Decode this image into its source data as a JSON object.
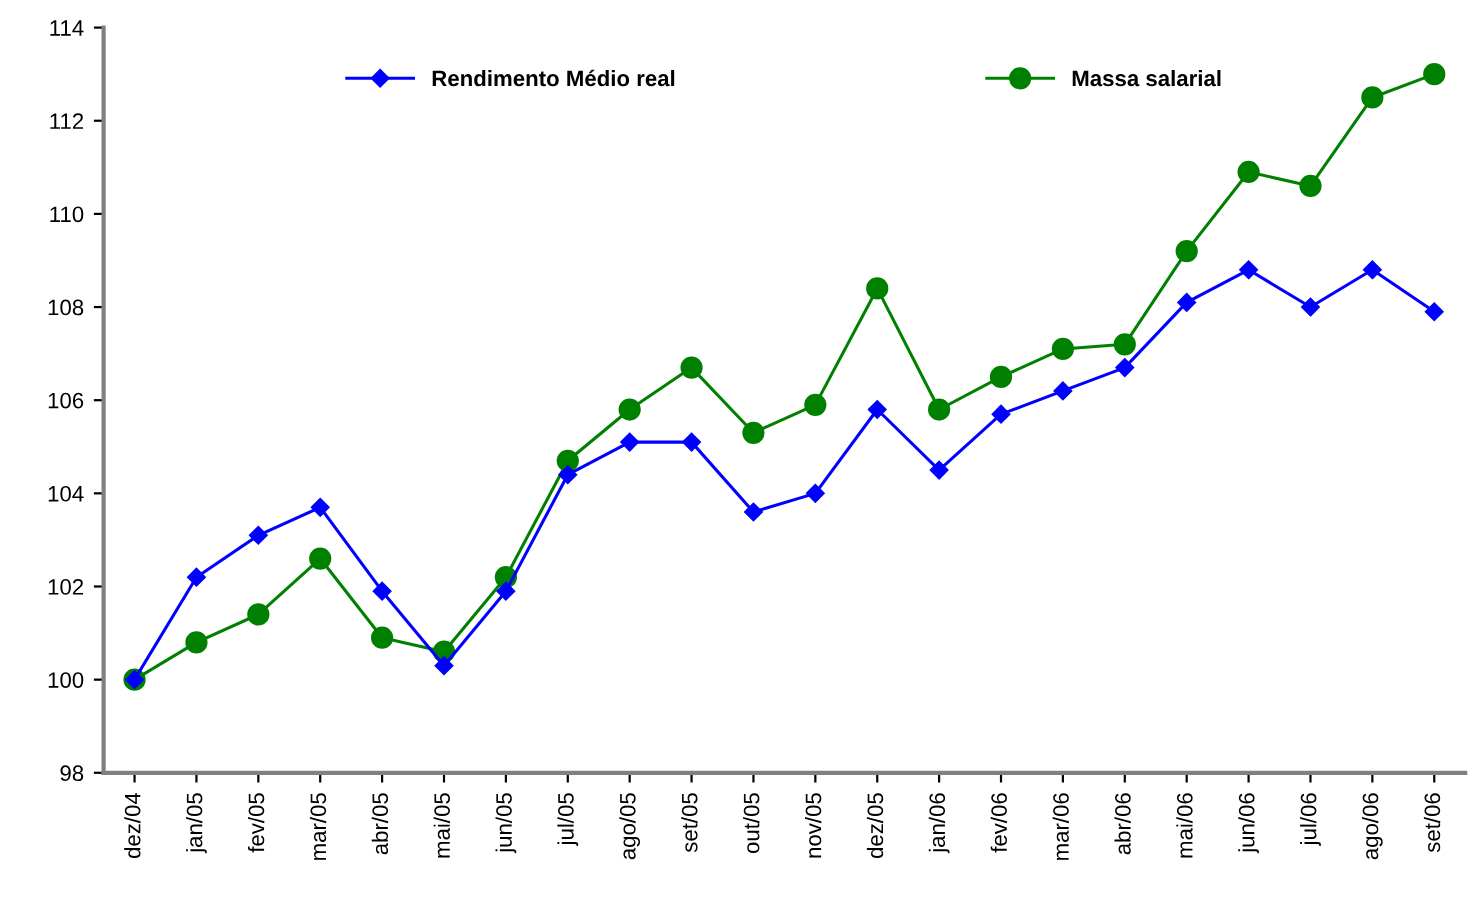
{
  "chart_data": {
    "type": "line",
    "categories": [
      "dez/04",
      "jan/05",
      "fev/05",
      "mar/05",
      "abr/05",
      "mai/05",
      "jun/05",
      "jul/05",
      "ago/05",
      "set/05",
      "out/05",
      "nov/05",
      "dez/05",
      "jan/06",
      "fev/06",
      "mar/06",
      "abr/06",
      "mai/06",
      "jun/06",
      "jul/06",
      "ago/06",
      "set/06"
    ],
    "series": [
      {
        "name": "Rendimento Médio real",
        "color": "#0000ff",
        "marker": "diamond",
        "values": [
          100.0,
          102.2,
          103.1,
          103.7,
          101.9,
          100.3,
          101.9,
          104.4,
          105.1,
          105.1,
          103.6,
          104.0,
          105.8,
          104.5,
          105.7,
          106.2,
          106.7,
          108.1,
          108.8,
          108.0,
          108.8,
          107.9
        ]
      },
      {
        "name": "Massa salarial",
        "color": "#008000",
        "marker": "circle",
        "values": [
          100.0,
          100.8,
          101.4,
          102.6,
          100.9,
          100.6,
          102.2,
          104.7,
          105.8,
          106.7,
          105.3,
          105.9,
          108.4,
          105.8,
          106.5,
          107.1,
          107.2,
          109.2,
          110.9,
          110.6,
          112.5,
          113.0
        ]
      }
    ],
    "ylim": [
      98,
      114
    ],
    "yticks": [
      98,
      100,
      102,
      104,
      106,
      108,
      110,
      112,
      114
    ],
    "grid": false,
    "legend": "top",
    "line_style": "solid"
  }
}
